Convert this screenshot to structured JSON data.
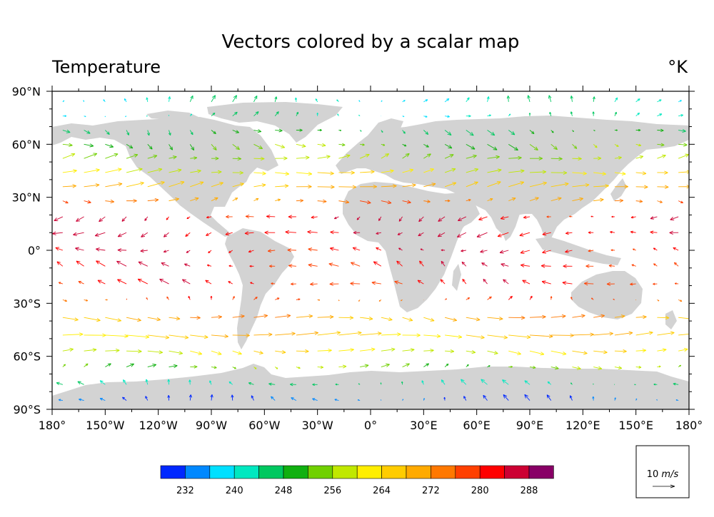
{
  "chart_data": {
    "type": "vector",
    "title": "Vectors colored by a scalar map",
    "left_string": "Temperature",
    "right_string": "°K",
    "x_ticks": [
      {
        "value": -180,
        "label": "180°"
      },
      {
        "value": -150,
        "label": "150°W"
      },
      {
        "value": -120,
        "label": "120°W"
      },
      {
        "value": -90,
        "label": "90°W"
      },
      {
        "value": -60,
        "label": "60°W"
      },
      {
        "value": -30,
        "label": "30°W"
      },
      {
        "value": 0,
        "label": "0°"
      },
      {
        "value": 30,
        "label": "30°E"
      },
      {
        "value": 60,
        "label": "60°E"
      },
      {
        "value": 90,
        "label": "90°E"
      },
      {
        "value": 120,
        "label": "120°E"
      },
      {
        "value": 150,
        "label": "150°E"
      },
      {
        "value": 180,
        "label": "180°"
      }
    ],
    "y_ticks": [
      {
        "value": 90,
        "label": "90°N"
      },
      {
        "value": 60,
        "label": "60°N"
      },
      {
        "value": 30,
        "label": "30°N"
      },
      {
        "value": 0,
        "label": "0°"
      },
      {
        "value": -30,
        "label": "30°S"
      },
      {
        "value": -60,
        "label": "60°S"
      },
      {
        "value": -90,
        "label": "90°S"
      }
    ],
    "xlim": [
      -180,
      180
    ],
    "ylim": [
      -90,
      90
    ],
    "colorbar": {
      "colors": [
        "#0028ff",
        "#0088ff",
        "#00e0ff",
        "#00e8c0",
        "#00c860",
        "#10b010",
        "#70d000",
        "#c0e800",
        "#ffee00",
        "#ffcc00",
        "#ffaa00",
        "#ff7800",
        "#ff4000",
        "#ff0000",
        "#cc0033",
        "#880066"
      ],
      "labels": [
        {
          "after_box": 1,
          "text": "232"
        },
        {
          "after_box": 3,
          "text": "240"
        },
        {
          "after_box": 5,
          "text": "248"
        },
        {
          "after_box": 7,
          "text": "256"
        },
        {
          "after_box": 9,
          "text": "264"
        },
        {
          "after_box": 11,
          "text": "272"
        },
        {
          "after_box": 13,
          "text": "280"
        },
        {
          "after_box": 15,
          "text": "288"
        }
      ],
      "levels": [
        230,
        234,
        238,
        242,
        246,
        250,
        254,
        258,
        262,
        266,
        270,
        274,
        278,
        282,
        286,
        290
      ]
    },
    "reference_vector": {
      "magnitude": 10,
      "label_number": "10",
      "label_unit": "m/s"
    },
    "land_color": "#d3d3d3",
    "vector_grid": {
      "lon_step": 12,
      "lat_rows": [
        84,
        76,
        68,
        60,
        52,
        44,
        36,
        28,
        19,
        10,
        0,
        -9,
        -19,
        -28,
        -38,
        -48,
        -57,
        -66,
        -76,
        -85
      ]
    },
    "zonal_profile": [
      {
        "lat": 84,
        "u": 0.5,
        "v": 1.8,
        "temp": 244
      },
      {
        "lat": 76,
        "u": 0.8,
        "v": 0.8,
        "temp": 244
      },
      {
        "lat": 68,
        "u": 2.0,
        "v": -1.2,
        "temp": 250
      },
      {
        "lat": 60,
        "u": 3.0,
        "v": -1.5,
        "temp": 255
      },
      {
        "lat": 52,
        "u": 4.5,
        "v": 1.0,
        "temp": 258
      },
      {
        "lat": 44,
        "u": 6.0,
        "v": 0.5,
        "temp": 263
      },
      {
        "lat": 36,
        "u": 6.5,
        "v": 1.0,
        "temp": 270
      },
      {
        "lat": 28,
        "u": 3.5,
        "v": 0.2,
        "temp": 275
      },
      {
        "lat": 19,
        "u": -2.5,
        "v": -1.0,
        "temp": 285
      },
      {
        "lat": 10,
        "u": -3.5,
        "v": -0.8,
        "temp": 286
      },
      {
        "lat": 0,
        "u": -2.8,
        "v": 0.0,
        "temp": 285
      },
      {
        "lat": -9,
        "u": -3.0,
        "v": 1.2,
        "temp": 284
      },
      {
        "lat": -19,
        "u": -3.0,
        "v": 1.0,
        "temp": 283
      },
      {
        "lat": -28,
        "u": 0.5,
        "v": 0.5,
        "temp": 279
      },
      {
        "lat": -38,
        "u": 6.0,
        "v": -0.3,
        "temp": 272
      },
      {
        "lat": -48,
        "u": 9.0,
        "v": 0.0,
        "temp": 268
      },
      {
        "lat": -57,
        "u": 5.5,
        "v": -0.3,
        "temp": 263
      },
      {
        "lat": -66,
        "u": 2.5,
        "v": 0.3,
        "temp": 256
      },
      {
        "lat": -76,
        "u": -1.5,
        "v": 1.2,
        "temp": 246
      },
      {
        "lat": -85,
        "u": -1.0,
        "v": 1.5,
        "temp": 234
      }
    ]
  }
}
